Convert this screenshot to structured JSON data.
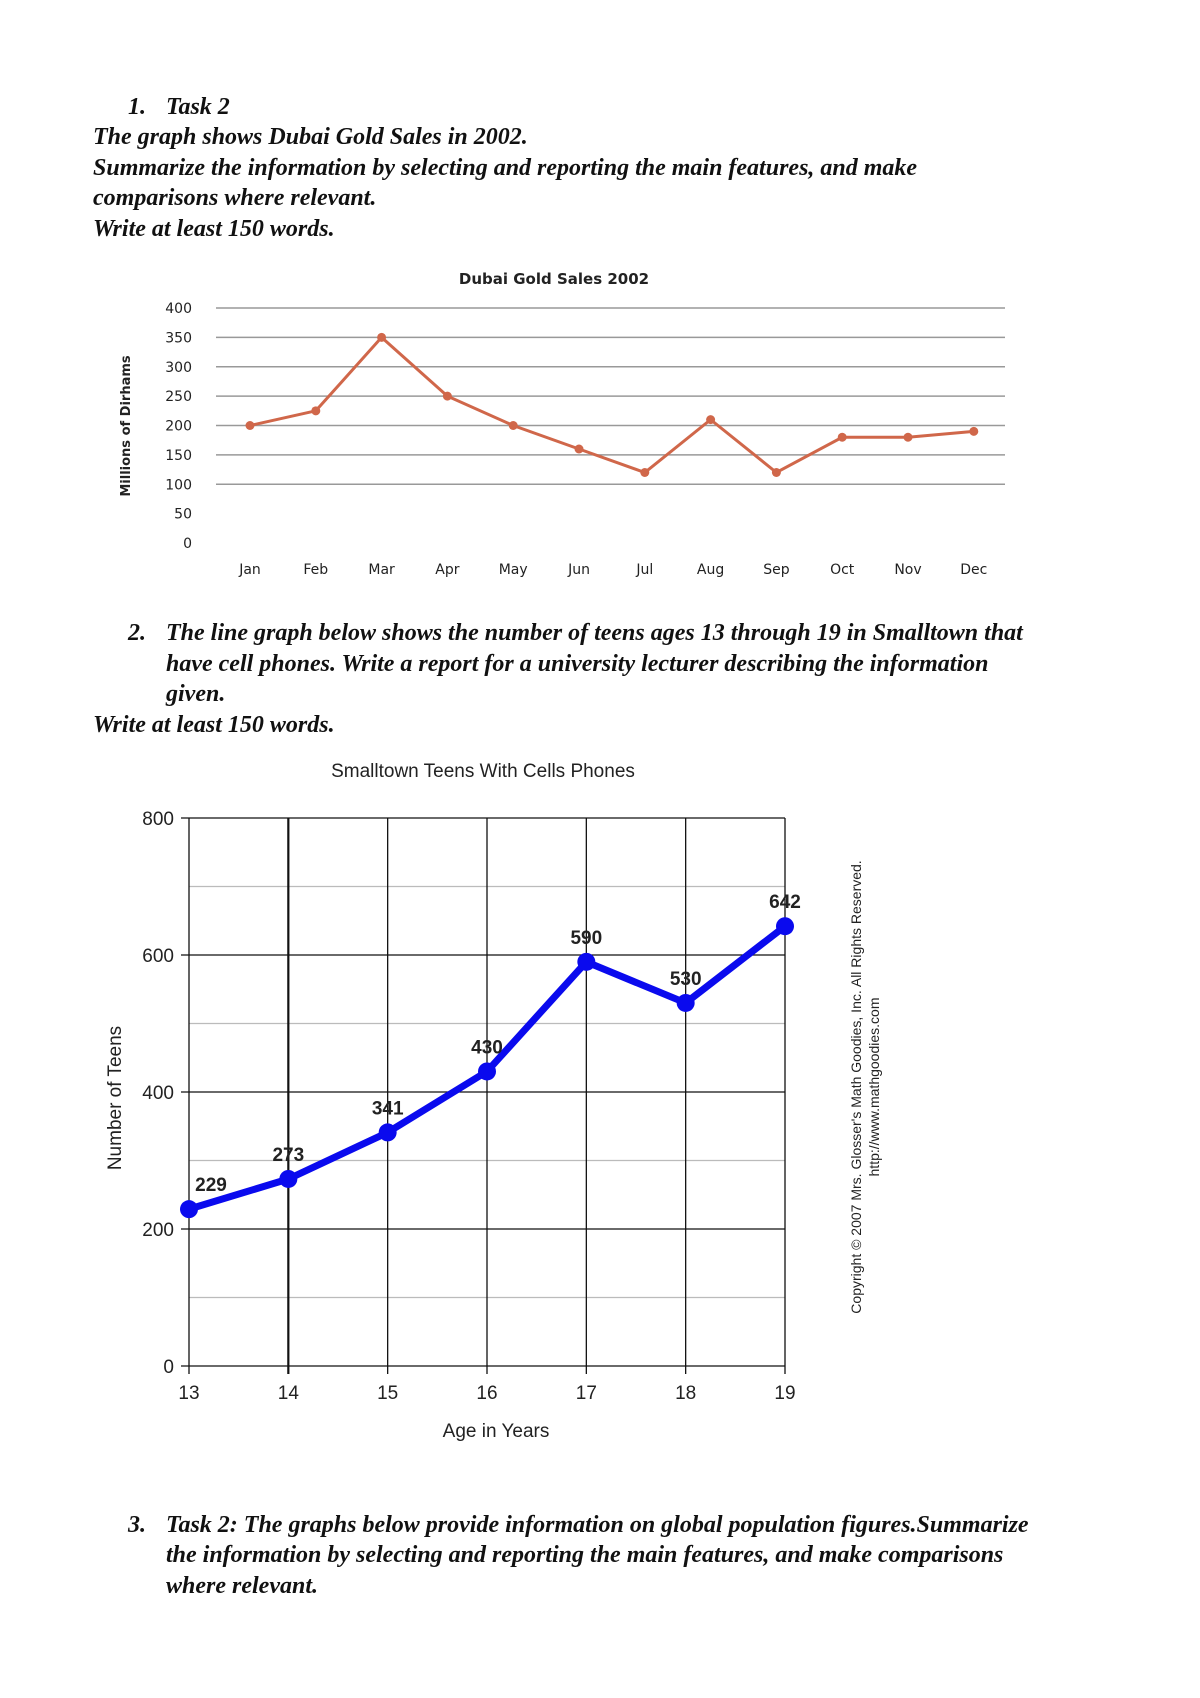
{
  "task1": {
    "number": "1.",
    "heading": "Task 2",
    "lines": [
      "The graph shows Dubai Gold Sales in 2002.",
      "Summarize the information by selecting and reporting the main features, and make",
      "comparisons where relevant.",
      "Write at least 150 words."
    ]
  },
  "task2": {
    "number": "2.",
    "lines": [
      "The line graph below shows the number of teens ages 13 through 19 in Smalltown that",
      "have cell phones. Write a report for a university lecturer describing the information",
      "given."
    ],
    "words": "Write at least 150 words."
  },
  "task3": {
    "number": "3.",
    "lines": [
      "Task 2: The graphs below provide information on global population figures.Summarize",
      "the information by selecting and reporting the main features, and make comparisons",
      "where relevant."
    ]
  },
  "chart_data": [
    {
      "type": "line",
      "title": "Dubai Gold Sales 2002",
      "ylabel": "Millions of Dirhams",
      "xlabel": "",
      "categories": [
        "Jan",
        "Feb",
        "Mar",
        "Apr",
        "May",
        "Jun",
        "Jul",
        "Aug",
        "Sep",
        "Oct",
        "Nov",
        "Dec"
      ],
      "values": [
        200,
        225,
        350,
        250,
        200,
        160,
        120,
        210,
        120,
        180,
        180,
        190
      ],
      "ylim": [
        0,
        400
      ],
      "yticks": [
        0,
        50,
        100,
        150,
        200,
        250,
        300,
        350,
        400
      ],
      "grid": true,
      "color": "#d0674a"
    },
    {
      "type": "line",
      "title": "Smalltown Teens With Cells Phones",
      "xlabel": "Age in Years",
      "ylabel": "Number of Teens",
      "x": [
        13,
        14,
        15,
        16,
        17,
        18,
        19
      ],
      "values": [
        229,
        273,
        341,
        430,
        590,
        530,
        642
      ],
      "data_labels": [
        "229",
        "273",
        "341",
        "430",
        "590",
        "530",
        "642"
      ],
      "ylim": [
        0,
        800
      ],
      "yticks": [
        0,
        200,
        400,
        600,
        800
      ],
      "grid": true,
      "color": "#0a0aee",
      "copyright": "Copyright © 2007 Mrs. Glosser's Math Goodies, Inc. All Rights Reserved.",
      "url": "http://www.mathgoodies.com"
    }
  ]
}
